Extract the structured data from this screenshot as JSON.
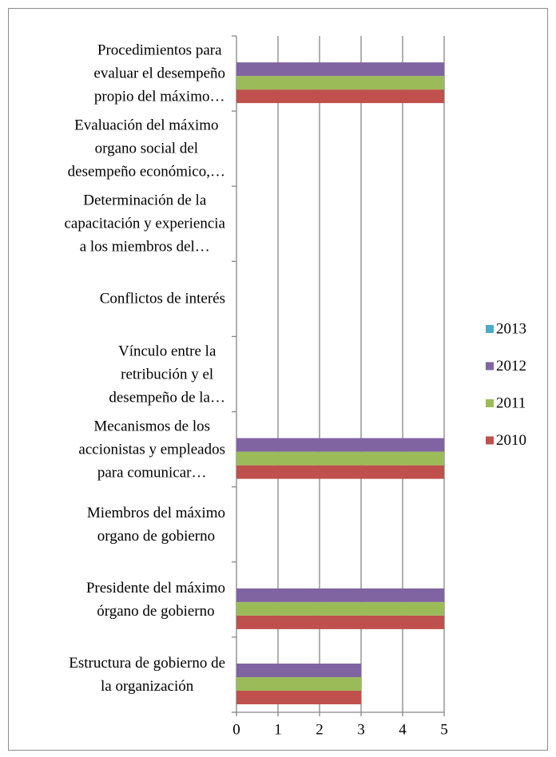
{
  "chart_data": {
    "type": "bar",
    "orientation": "horizontal",
    "categories": [
      "Estructura de gobierno de\nla organización",
      "Presidente del máximo\nórgano de gobierno",
      "Miembros del máximo\norgano de gobierno",
      "Mecanismos de los\naccionistas y empleados\npara comunicar…",
      "Vínculo entre la\nretribución y el\ndesempeño de la…",
      "Conflictos de interés",
      "Determinación de la\ncapacitación y experiencia\na los miembros del…",
      "Evaluación del máximo\norgano social del\ndesempeño económico,…",
      "Procedimientos para\nevaluar el desempeño\npropio del máximo…"
    ],
    "series": [
      {
        "name": "2010",
        "color": "#c0504d",
        "values": [
          3,
          5,
          0,
          5,
          0,
          0,
          0,
          0,
          5
        ]
      },
      {
        "name": "2011",
        "color": "#9bbb59",
        "values": [
          3,
          5,
          0,
          5,
          0,
          0,
          0,
          0,
          5
        ]
      },
      {
        "name": "2012",
        "color": "#8064a2",
        "values": [
          3,
          5,
          0,
          5,
          0,
          0,
          0,
          0,
          5
        ]
      },
      {
        "name": "2013",
        "color": "#4bacc6",
        "values": [
          0,
          0,
          0,
          0,
          0,
          0,
          0,
          0,
          0
        ]
      }
    ],
    "xlim": [
      0,
      5
    ],
    "xticks": [
      0,
      1,
      2,
      3,
      4,
      5
    ],
    "grid": true,
    "legend": "right"
  }
}
